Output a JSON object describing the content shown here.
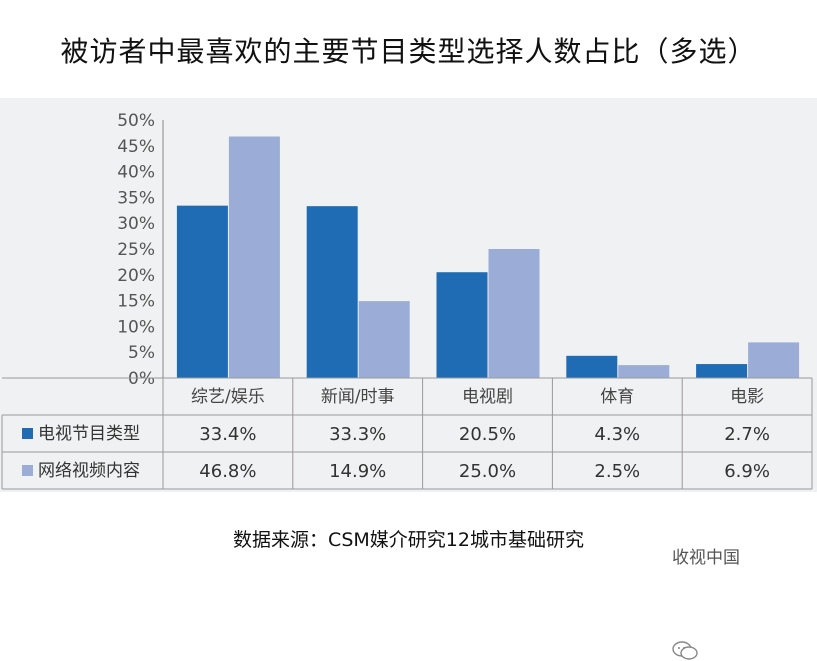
{
  "title": "被访者中最喜欢的主要节目类型选择人数占比（多选）",
  "source": "数据来源：CSM媒介研究12城市基础研究",
  "watermark": "收视中国",
  "colors": {
    "series1": "#1f6cb5",
    "series2": "#9badd6",
    "grid": "#ffffff",
    "background": "#f0f1f2"
  },
  "chart_data": {
    "type": "bar",
    "title": "被访者中最喜欢的主要节目类型选择人数占比（多选）",
    "xlabel": "",
    "ylabel": "",
    "ylim": [
      0,
      50
    ],
    "yticks": [
      "0%",
      "5%",
      "10%",
      "15%",
      "20%",
      "25%",
      "30%",
      "35%",
      "40%",
      "45%",
      "50%"
    ],
    "categories": [
      "综艺/娱乐",
      "新闻/时事",
      "电视剧",
      "体育",
      "电影"
    ],
    "series": [
      {
        "name": "电视节目类型",
        "values": [
          33.4,
          33.3,
          20.5,
          4.3,
          2.7
        ],
        "labels": [
          "33.4%",
          "33.3%",
          "20.5%",
          "4.3%",
          "2.7%"
        ]
      },
      {
        "name": "网络视频内容",
        "values": [
          46.8,
          14.9,
          25.0,
          2.5,
          6.9
        ],
        "labels": [
          "46.8%",
          "14.9%",
          "25.0%",
          "2.5%",
          "6.9%"
        ]
      }
    ],
    "legend": "data-table-left",
    "grid": false
  }
}
